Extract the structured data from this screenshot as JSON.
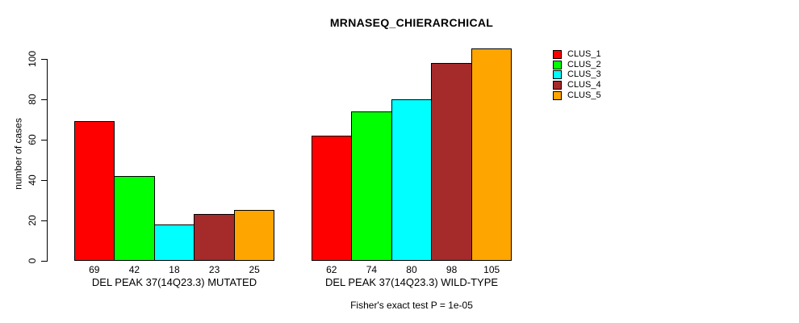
{
  "chart_data": {
    "type": "bar",
    "title": "MRNASEQ_CHIERARCHICAL",
    "ylabel": "number of cases",
    "xlabel": "",
    "yticks": [
      0,
      20,
      40,
      60,
      80,
      100
    ],
    "ylim": [
      0,
      110
    ],
    "grid": false,
    "legend_position": "right-outside",
    "bar_border_color": "#000000",
    "series": [
      {
        "name": "CLUS_1",
        "color": "#FF0000"
      },
      {
        "name": "CLUS_2",
        "color": "#00FF00"
      },
      {
        "name": "CLUS_3",
        "color": "#00FFFF"
      },
      {
        "name": "CLUS_4",
        "color": "#A52A2A"
      },
      {
        "name": "CLUS_5",
        "color": "#FFA500"
      }
    ],
    "groups": [
      {
        "label": "DEL PEAK 37(14Q23.3) MUTATED",
        "values": [
          69,
          42,
          18,
          23,
          25
        ]
      },
      {
        "label": "DEL PEAK 37(14Q23.3) WILD-TYPE",
        "values": [
          62,
          74,
          80,
          98,
          105
        ]
      }
    ],
    "caption": "Fisher's exact test P = 1e-05"
  }
}
